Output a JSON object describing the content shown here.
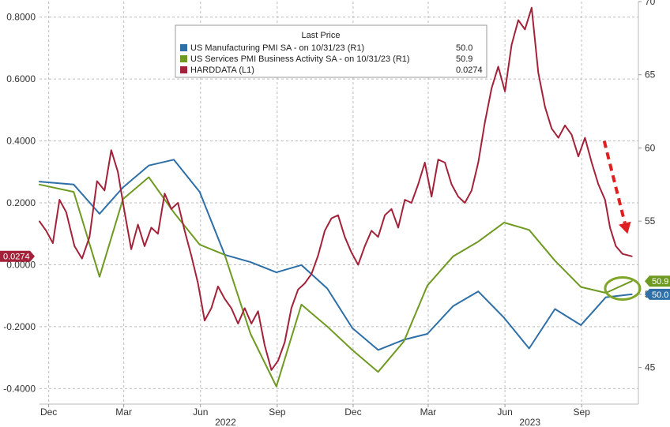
{
  "chart_data": {
    "type": "line",
    "title": "",
    "xlabel": "",
    "left_axis": {
      "range": [
        -0.45,
        0.85
      ],
      "ticks": [
        0.8,
        0.6,
        0.4,
        0.2,
        0.0,
        -0.2,
        -0.4
      ],
      "tick_labels": [
        "0.8000",
        "0.6000",
        "0.4000",
        "0.2000",
        "0.0000",
        "-0.2000",
        "-0.4000"
      ]
    },
    "right_axis": {
      "range": [
        42.5,
        70
      ],
      "ticks": [
        70,
        65,
        60,
        55,
        50,
        45
      ],
      "tick_labels": [
        "70",
        "65",
        "60",
        "55",
        "50",
        "45"
      ]
    },
    "x_axis": {
      "range": [
        "2021-11-20",
        "2023-11-08"
      ],
      "month_ticks": [
        {
          "date": "2021-12-01",
          "label": "Dec"
        },
        {
          "date": "2022-03-01",
          "label": "Mar"
        },
        {
          "date": "2022-06-01",
          "label": "Jun"
        },
        {
          "date": "2022-09-01",
          "label": "Sep"
        },
        {
          "date": "2022-12-01",
          "label": "Dec"
        },
        {
          "date": "2023-03-01",
          "label": "Mar"
        },
        {
          "date": "2023-06-01",
          "label": "Jun"
        },
        {
          "date": "2023-09-01",
          "label": "Sep"
        }
      ],
      "year_labels": [
        {
          "date": "2022-07-01",
          "label": "2022"
        },
        {
          "date": "2023-07-01",
          "label": "2023"
        }
      ]
    },
    "grid": true,
    "legend": {
      "placement": "top-center",
      "header": "Last Price",
      "entries": [
        {
          "label": "US Manufacturing PMI SA -  on 10/31/23  (R1)",
          "value": "50.0",
          "color": "#2e6fa7"
        },
        {
          "label": "US Services PMI Business Activity SA -  on 10/31/23  (R1)",
          "value": "50.9",
          "color": "#6f9a22"
        },
        {
          "label": "HARDDATA  (L1)",
          "value": "0.0274",
          "color": "#a3223a"
        }
      ]
    },
    "series": [
      {
        "name": "US Manufacturing PMI SA",
        "axis": "right",
        "color": "#2e6fa7",
        "points": [
          [
            "2021-11-20",
            57.7
          ],
          [
            "2021-12-31",
            57.5
          ],
          [
            "2022-01-31",
            55.5
          ],
          [
            "2022-02-28",
            57.3
          ],
          [
            "2022-03-31",
            58.8
          ],
          [
            "2022-04-30",
            59.2
          ],
          [
            "2022-05-31",
            57.0
          ],
          [
            "2022-06-30",
            52.7
          ],
          [
            "2022-07-31",
            52.2
          ],
          [
            "2022-08-31",
            51.5
          ],
          [
            "2022-09-30",
            52.0
          ],
          [
            "2022-10-31",
            50.4
          ],
          [
            "2022-11-30",
            47.7
          ],
          [
            "2022-12-31",
            46.2
          ],
          [
            "2023-01-31",
            46.9
          ],
          [
            "2023-02-28",
            47.3
          ],
          [
            "2023-03-31",
            49.2
          ],
          [
            "2023-04-30",
            50.2
          ],
          [
            "2023-05-31",
            48.4
          ],
          [
            "2023-06-30",
            46.3
          ],
          [
            "2023-07-31",
            49.0
          ],
          [
            "2023-08-31",
            47.9
          ],
          [
            "2023-09-30",
            49.8
          ],
          [
            "2023-10-31",
            50.0
          ]
        ]
      },
      {
        "name": "US Services PMI Business Activity SA",
        "axis": "right",
        "color": "#6f9a22",
        "points": [
          [
            "2021-11-20",
            57.5
          ],
          [
            "2021-12-31",
            57.0
          ],
          [
            "2022-01-31",
            51.2
          ],
          [
            "2022-02-28",
            56.5
          ],
          [
            "2022-03-31",
            58.0
          ],
          [
            "2022-04-30",
            55.6
          ],
          [
            "2022-05-31",
            53.4
          ],
          [
            "2022-06-30",
            52.7
          ],
          [
            "2022-07-31",
            47.3
          ],
          [
            "2022-08-31",
            43.7
          ],
          [
            "2022-09-30",
            49.3
          ],
          [
            "2022-10-31",
            47.8
          ],
          [
            "2022-11-30",
            46.2
          ],
          [
            "2022-12-31",
            44.7
          ],
          [
            "2023-01-31",
            46.8
          ],
          [
            "2023-02-28",
            50.6
          ],
          [
            "2023-03-31",
            52.6
          ],
          [
            "2023-04-30",
            53.6
          ],
          [
            "2023-05-31",
            54.9
          ],
          [
            "2023-06-30",
            54.4
          ],
          [
            "2023-07-31",
            52.3
          ],
          [
            "2023-08-31",
            50.5
          ],
          [
            "2023-09-30",
            50.1
          ],
          [
            "2023-10-31",
            50.9
          ]
        ]
      },
      {
        "name": "HARDDATA",
        "axis": "left",
        "color": "#a3223a",
        "points": [
          [
            "2021-11-20",
            0.14
          ],
          [
            "2021-11-28",
            0.11
          ],
          [
            "2021-12-06",
            0.07
          ],
          [
            "2021-12-14",
            0.21
          ],
          [
            "2021-12-22",
            0.17
          ],
          [
            "2022-01-01",
            0.06
          ],
          [
            "2022-01-10",
            0.02
          ],
          [
            "2022-01-19",
            0.09
          ],
          [
            "2022-01-28",
            0.27
          ],
          [
            "2022-02-06",
            0.24
          ],
          [
            "2022-02-14",
            0.37
          ],
          [
            "2022-02-22",
            0.3
          ],
          [
            "2022-03-02",
            0.17
          ],
          [
            "2022-03-10",
            0.05
          ],
          [
            "2022-03-18",
            0.13
          ],
          [
            "2022-03-26",
            0.06
          ],
          [
            "2022-04-03",
            0.12
          ],
          [
            "2022-04-11",
            0.1
          ],
          [
            "2022-04-19",
            0.23
          ],
          [
            "2022-04-27",
            0.18
          ],
          [
            "2022-05-05",
            0.2
          ],
          [
            "2022-05-13",
            0.11
          ],
          [
            "2022-05-21",
            0.03
          ],
          [
            "2022-05-29",
            -0.06
          ],
          [
            "2022-06-06",
            -0.18
          ],
          [
            "2022-06-14",
            -0.14
          ],
          [
            "2022-06-22",
            -0.07
          ],
          [
            "2022-06-30",
            -0.11
          ],
          [
            "2022-07-08",
            -0.14
          ],
          [
            "2022-07-16",
            -0.19
          ],
          [
            "2022-07-24",
            -0.14
          ],
          [
            "2022-08-01",
            -0.19
          ],
          [
            "2022-08-09",
            -0.15
          ],
          [
            "2022-08-17",
            -0.26
          ],
          [
            "2022-08-25",
            -0.34
          ],
          [
            "2022-09-02",
            -0.31
          ],
          [
            "2022-09-10",
            -0.25
          ],
          [
            "2022-09-18",
            -0.14
          ],
          [
            "2022-09-26",
            -0.08
          ],
          [
            "2022-10-04",
            -0.06
          ],
          [
            "2022-10-12",
            -0.03
          ],
          [
            "2022-10-20",
            0.03
          ],
          [
            "2022-10-28",
            0.11
          ],
          [
            "2022-11-05",
            0.15
          ],
          [
            "2022-11-13",
            0.16
          ],
          [
            "2022-11-21",
            0.09
          ],
          [
            "2022-11-29",
            0.04
          ],
          [
            "2022-12-07",
            0.0
          ],
          [
            "2022-12-15",
            0.06
          ],
          [
            "2022-12-23",
            0.11
          ],
          [
            "2022-12-31",
            0.09
          ],
          [
            "2023-01-08",
            0.16
          ],
          [
            "2023-01-16",
            0.18
          ],
          [
            "2023-01-24",
            0.12
          ],
          [
            "2023-02-01",
            0.21
          ],
          [
            "2023-02-09",
            0.2
          ],
          [
            "2023-02-17",
            0.26
          ],
          [
            "2023-02-25",
            0.33
          ],
          [
            "2023-03-05",
            0.22
          ],
          [
            "2023-03-13",
            0.34
          ],
          [
            "2023-03-21",
            0.33
          ],
          [
            "2023-03-29",
            0.26
          ],
          [
            "2023-04-06",
            0.22
          ],
          [
            "2023-04-14",
            0.2
          ],
          [
            "2023-04-22",
            0.24
          ],
          [
            "2023-04-30",
            0.33
          ],
          [
            "2023-05-08",
            0.46
          ],
          [
            "2023-05-16",
            0.57
          ],
          [
            "2023-05-24",
            0.64
          ],
          [
            "2023-06-01",
            0.56
          ],
          [
            "2023-06-09",
            0.71
          ],
          [
            "2023-06-17",
            0.79
          ],
          [
            "2023-06-25",
            0.76
          ],
          [
            "2023-07-03",
            0.83
          ],
          [
            "2023-07-11",
            0.62
          ],
          [
            "2023-07-19",
            0.51
          ],
          [
            "2023-07-27",
            0.44
          ],
          [
            "2023-08-04",
            0.41
          ],
          [
            "2023-08-12",
            0.45
          ],
          [
            "2023-08-20",
            0.42
          ],
          [
            "2023-08-28",
            0.35
          ],
          [
            "2023-09-05",
            0.41
          ],
          [
            "2023-09-13",
            0.33
          ],
          [
            "2023-09-21",
            0.26
          ],
          [
            "2023-09-29",
            0.21
          ],
          [
            "2023-10-05",
            0.12
          ],
          [
            "2023-10-12",
            0.06
          ],
          [
            "2023-10-20",
            0.035
          ],
          [
            "2023-10-31",
            0.0274
          ]
        ]
      }
    ],
    "last_value_flags": [
      {
        "label": "0.0274",
        "axis": "left",
        "value": 0.0274,
        "color": "#a3223a"
      },
      {
        "label": "50.9",
        "axis": "right",
        "value": 50.9,
        "color": "#6f9a22"
      },
      {
        "label": "50.0",
        "axis": "right",
        "value": 50.0,
        "color": "#2e6fa7"
      }
    ],
    "annotations": [
      {
        "type": "dashed-arrow",
        "color": "#e02020",
        "from": [
          "2023-09-28",
          0.4
        ],
        "to": [
          "2023-10-26",
          0.1
        ]
      },
      {
        "type": "circle",
        "color": "#7fa628",
        "center": [
          "2023-10-20",
          50.4
        ]
      }
    ]
  }
}
